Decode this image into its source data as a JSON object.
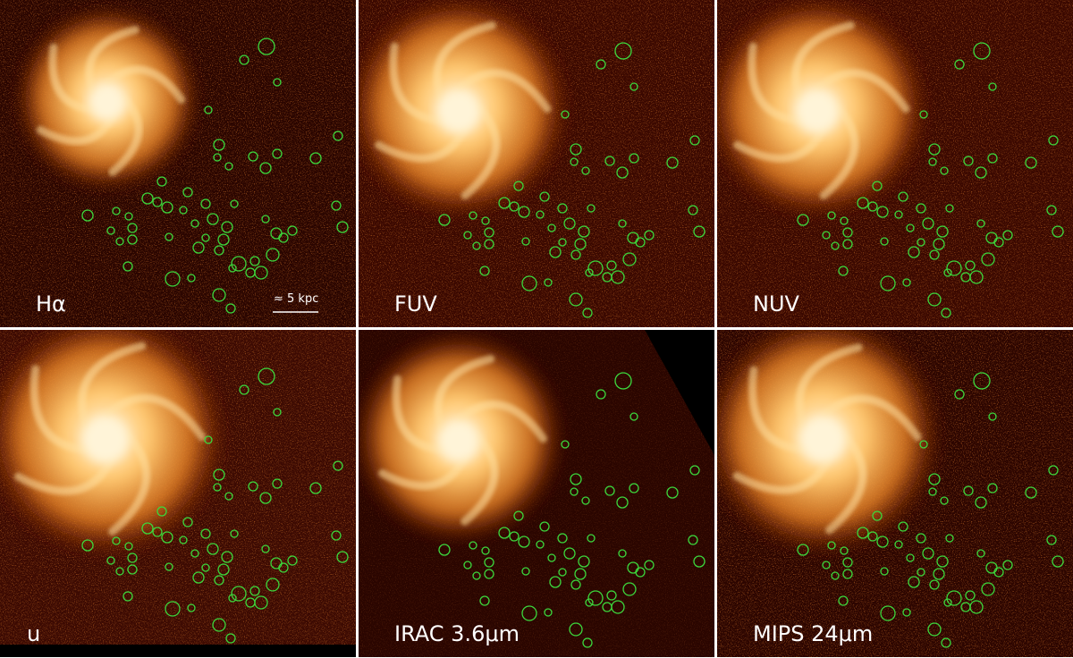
{
  "panels": [
    {
      "label": "Hα"
    },
    {
      "label": "FUV"
    },
    {
      "label": "NUV"
    },
    {
      "label": "u"
    },
    {
      "label": "IRAC 3.6μm"
    },
    {
      "label": "MIPS 24μm"
    }
  ],
  "scale_bar": {
    "label": "≈ 5 kpc"
  }
}
